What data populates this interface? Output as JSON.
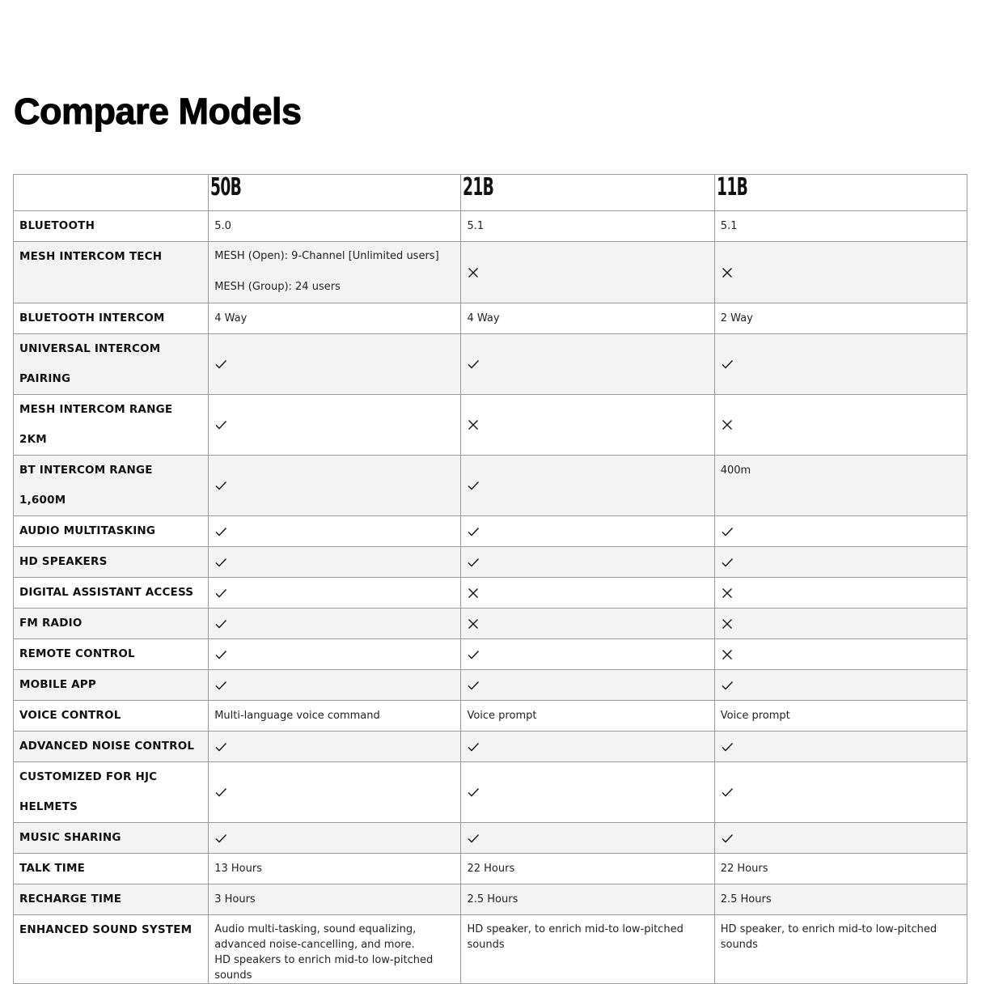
{
  "title": "Compare Models",
  "models": [
    "50B",
    "21B",
    "11B"
  ],
  "rows": [
    {
      "label": "BLUETOOTH",
      "cells": [
        {
          "text": "5.0"
        },
        {
          "text": "5.1"
        },
        {
          "text": "5.1"
        }
      ]
    },
    {
      "label": "MESH INTERCOM TECH",
      "tall": true,
      "cells": [
        {
          "lines": [
            "MESH (Open): 9-Channel [Unlimited users]",
            "",
            "MESH (Group): 24 users"
          ]
        },
        {
          "icon": "x"
        },
        {
          "icon": "x"
        }
      ]
    },
    {
      "label": "BLUETOOTH INTERCOM",
      "cells": [
        {
          "text": "4 Way"
        },
        {
          "text": "4 Way"
        },
        {
          "text": "2 Way"
        }
      ]
    },
    {
      "label": "UNIVERSAL INTERCOM PAIRING",
      "cells": [
        {
          "icon": "check"
        },
        {
          "icon": "check"
        },
        {
          "icon": "check"
        }
      ]
    },
    {
      "label": "MESH INTERCOM RANGE 2KM",
      "cells": [
        {
          "icon": "check"
        },
        {
          "icon": "x"
        },
        {
          "icon": "x"
        }
      ]
    },
    {
      "label": "BT INTERCOM RANGE 1,600M",
      "cells": [
        {
          "icon": "check"
        },
        {
          "icon": "check"
        },
        {
          "text": "400m"
        }
      ]
    },
    {
      "label": "AUDIO MULTITASKING",
      "cells": [
        {
          "icon": "check"
        },
        {
          "icon": "check"
        },
        {
          "icon": "check"
        }
      ]
    },
    {
      "label": "HD SPEAKERS",
      "cells": [
        {
          "icon": "check"
        },
        {
          "icon": "check"
        },
        {
          "icon": "check"
        }
      ]
    },
    {
      "label": "DIGITAL ASSISTANT ACCESS",
      "cells": [
        {
          "icon": "check"
        },
        {
          "icon": "x"
        },
        {
          "icon": "x"
        }
      ]
    },
    {
      "label": "FM RADIO",
      "cells": [
        {
          "icon": "check"
        },
        {
          "icon": "x"
        },
        {
          "icon": "x"
        }
      ]
    },
    {
      "label": "REMOTE CONTROL",
      "cells": [
        {
          "icon": "check"
        },
        {
          "icon": "check"
        },
        {
          "icon": "x"
        }
      ]
    },
    {
      "label": "MOBILE APP",
      "cells": [
        {
          "icon": "check"
        },
        {
          "icon": "check"
        },
        {
          "icon": "check"
        }
      ]
    },
    {
      "label": "VOICE CONTROL",
      "cells": [
        {
          "text": "Multi-language voice command"
        },
        {
          "text": "Voice prompt"
        },
        {
          "text": "Voice prompt"
        }
      ]
    },
    {
      "label": "ADVANCED NOISE CONTROL",
      "cells": [
        {
          "icon": "check"
        },
        {
          "icon": "check"
        },
        {
          "icon": "check"
        }
      ]
    },
    {
      "label": "CUSTOMIZED FOR HJC HELMETS",
      "cells": [
        {
          "icon": "check"
        },
        {
          "icon": "check"
        },
        {
          "icon": "check"
        }
      ]
    },
    {
      "label": "MUSIC SHARING",
      "cells": [
        {
          "icon": "check"
        },
        {
          "icon": "check"
        },
        {
          "icon": "check"
        }
      ]
    },
    {
      "label": "TALK TIME",
      "cells": [
        {
          "text": "13 Hours"
        },
        {
          "text": "22 Hours"
        },
        {
          "text": "22 Hours"
        }
      ]
    },
    {
      "label": "RECHARGE TIME",
      "cells": [
        {
          "text": "3 Hours"
        },
        {
          "text": "2.5 Hours"
        },
        {
          "text": "2.5 Hours"
        }
      ]
    },
    {
      "label": "ENHANCED SOUND SYSTEM",
      "tall": true,
      "cells": [
        {
          "lines": [
            "Audio multi-tasking, sound equalizing,",
            "advanced noise-cancelling, and more.",
            "HD speakers to enrich mid-to low-pitched sounds"
          ]
        },
        {
          "lines": [
            "HD speaker, to enrich mid-to low-pitched sounds"
          ]
        },
        {
          "lines": [
            "HD speaker, to enrich mid-to low-pitched sounds"
          ]
        }
      ]
    }
  ]
}
